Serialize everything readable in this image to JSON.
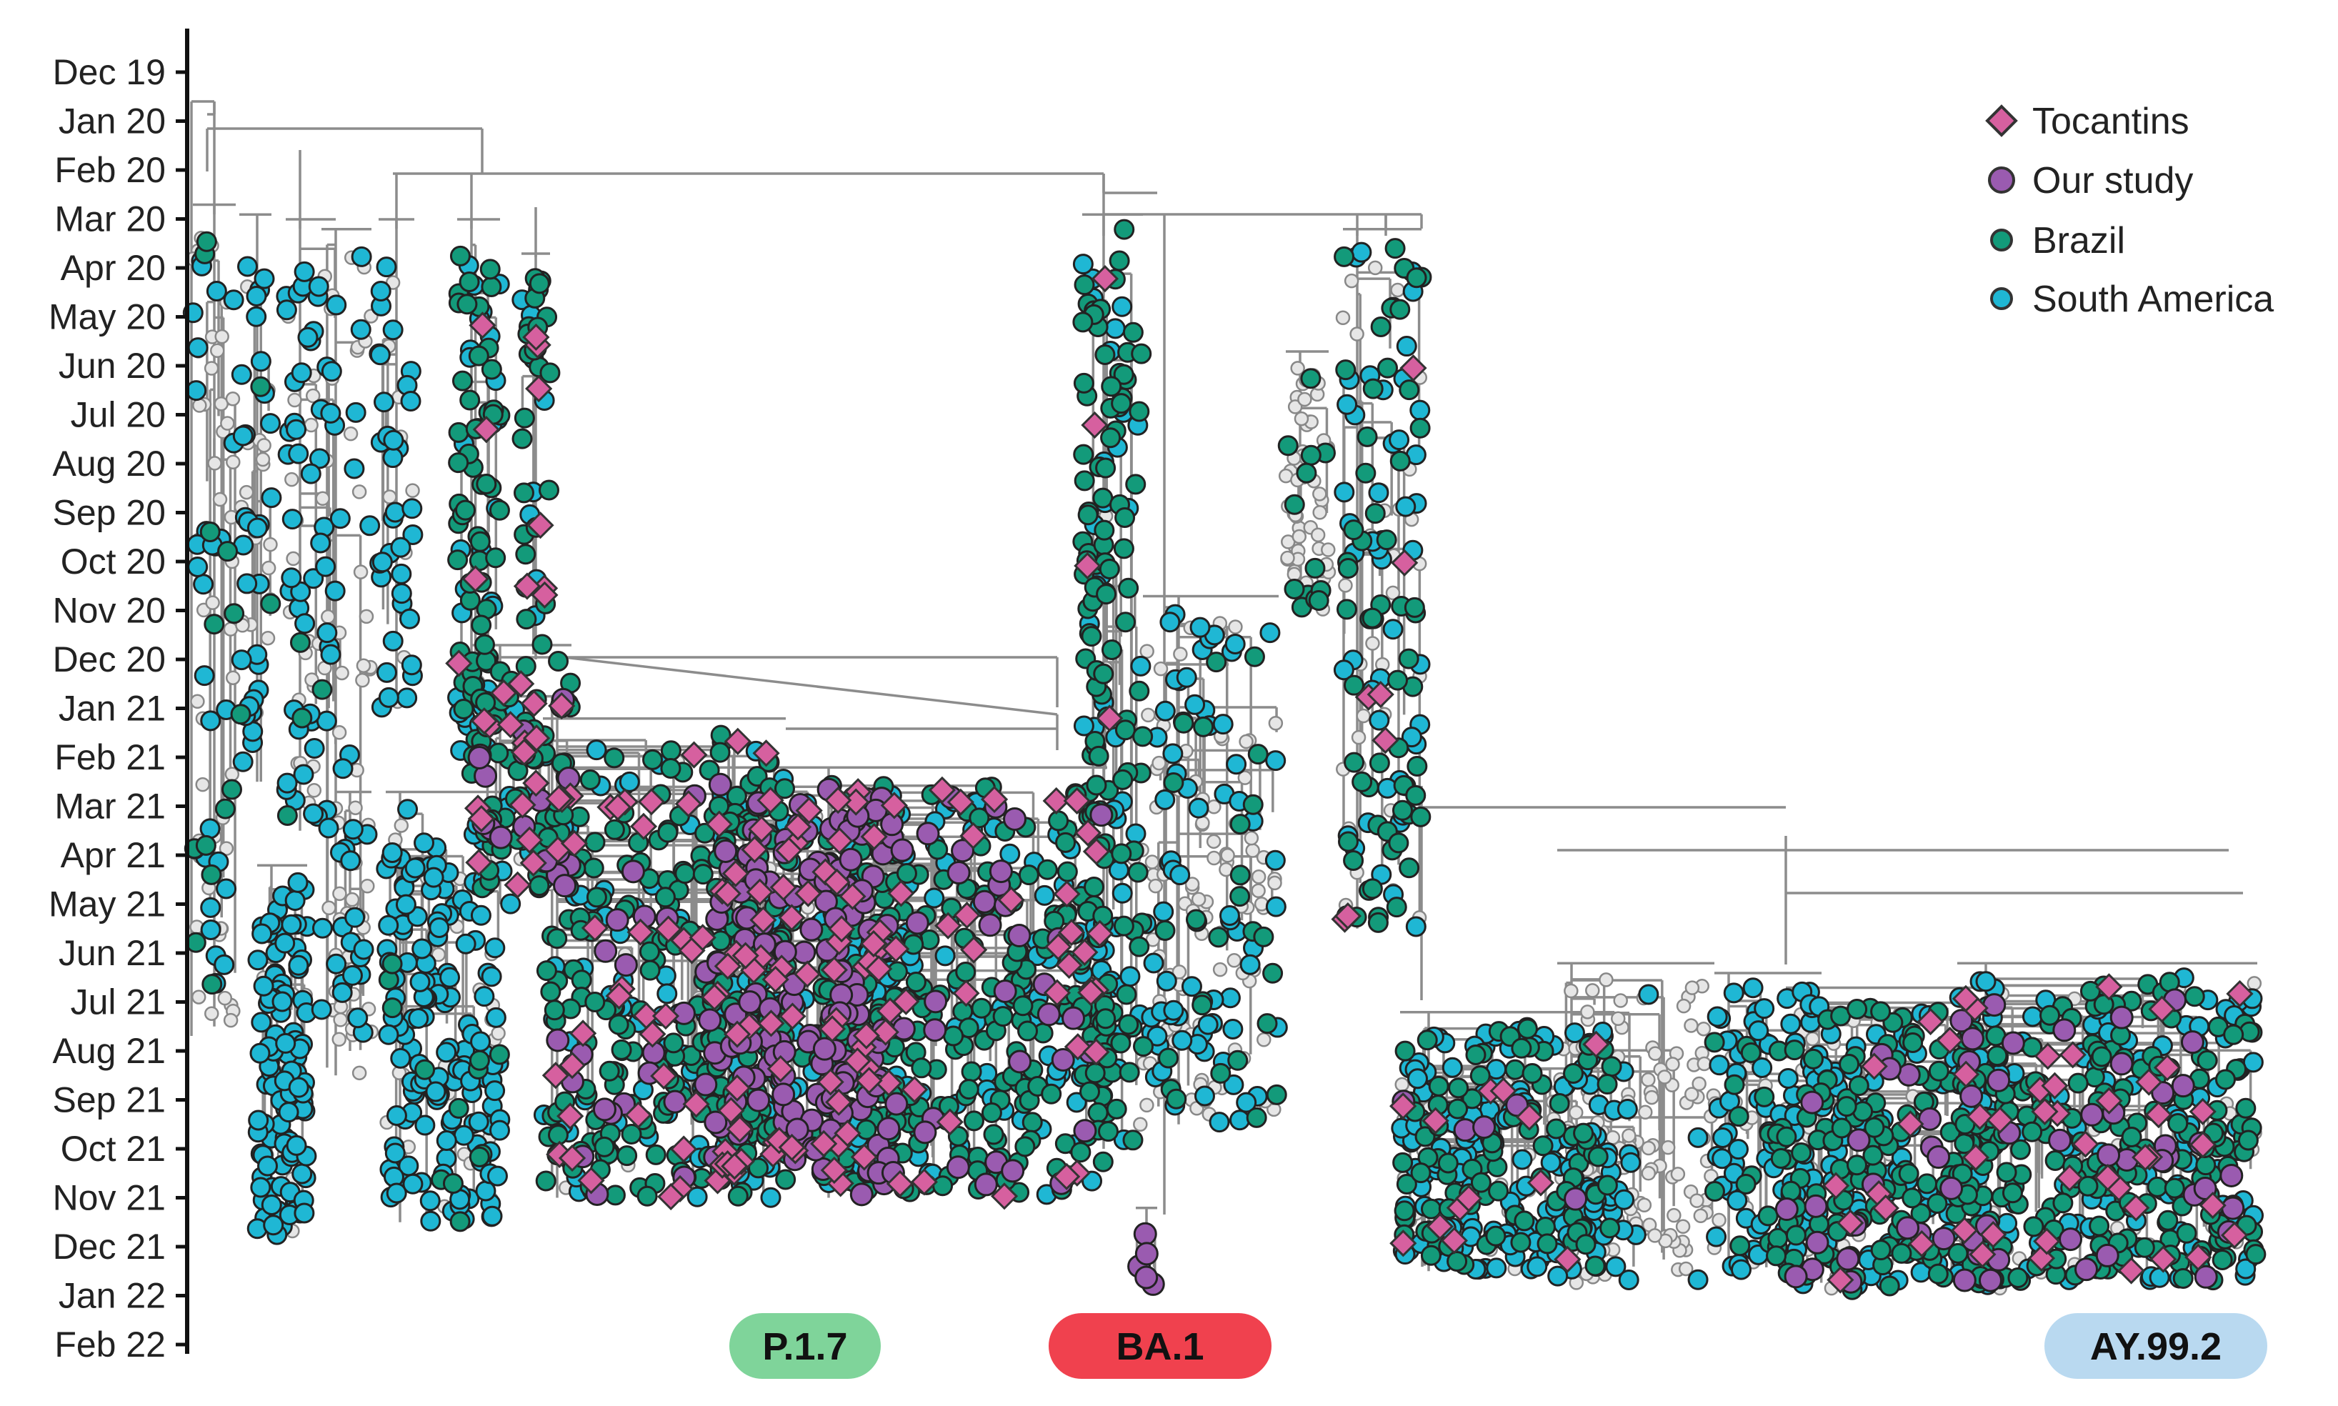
{
  "chart_data": {
    "type": "scatter",
    "subtype": "time-scaled phylogenetic tree",
    "y_axis": {
      "orientation": "inverted",
      "ticks": [
        "Dec 19",
        "Jan 20",
        "Feb 20",
        "Mar 20",
        "Apr 20",
        "May 20",
        "Jun 20",
        "Jul 20",
        "Aug 20",
        "Sep 20",
        "Oct 20",
        "Nov 20",
        "Dec 20",
        "Jan 21",
        "Feb 21",
        "Mar 21",
        "Apr 21",
        "May 21",
        "Jun 21",
        "Jul 21",
        "Aug 21",
        "Sep 21",
        "Oct 21",
        "Nov 21",
        "Dec 21",
        "Jan 22",
        "Feb 22"
      ]
    },
    "legend": {
      "placement": "top-right",
      "items": [
        {
          "label": "Tocantins",
          "shape": "diamond",
          "color": "#d6609f"
        },
        {
          "label": "Our study",
          "shape": "circle",
          "color": "#9a5bb0"
        },
        {
          "label": "Brazil",
          "shape": "circle",
          "color": "#139a7a"
        },
        {
          "label": "South America",
          "shape": "circle",
          "color": "#1fb7d4"
        }
      ]
    },
    "other_tip_color": "#e6e6e6",
    "branch_color": "#8c8c8c",
    "lineages": [
      {
        "label": "P.1.7",
        "color": "#7fd49a"
      },
      {
        "label": "BA.1",
        "color": "#f0414e"
      },
      {
        "label": "AY.99.2",
        "color": "#b9d9f0"
      }
    ]
  }
}
